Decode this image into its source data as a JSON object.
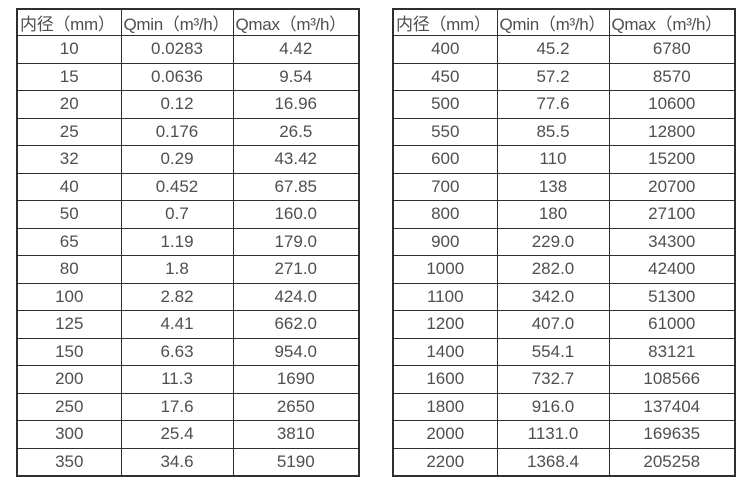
{
  "page": {
    "background": "#ffffff",
    "border_color": "#2e2e2e",
    "text_color": "#4f4f4f"
  },
  "tables": [
    {
      "name": "flow-spec-table-small-diameters",
      "headers": [
        "内径（mm）",
        "Qmin（m³/h）",
        "Qmax（m³/h）"
      ],
      "rows": [
        [
          "10",
          "0.0283",
          "4.42"
        ],
        [
          "15",
          "0.0636",
          "9.54"
        ],
        [
          "20",
          "0.12",
          "16.96"
        ],
        [
          "25",
          "0.176",
          "26.5"
        ],
        [
          "32",
          "0.29",
          "43.42"
        ],
        [
          "40",
          "0.452",
          "67.85"
        ],
        [
          "50",
          "0.7",
          "160.0"
        ],
        [
          "65",
          "1.19",
          "179.0"
        ],
        [
          "80",
          "1.8",
          "271.0"
        ],
        [
          "100",
          "2.82",
          "424.0"
        ],
        [
          "125",
          "4.41",
          "662.0"
        ],
        [
          "150",
          "6.63",
          "954.0"
        ],
        [
          "200",
          "11.3",
          "1690"
        ],
        [
          "250",
          "17.6",
          "2650"
        ],
        [
          "300",
          "25.4",
          "3810"
        ],
        [
          "350",
          "34.6",
          "5190"
        ]
      ]
    },
    {
      "name": "flow-spec-table-large-diameters",
      "headers": [
        "内径（mm）",
        "Qmin（m³/h）",
        "Qmax（m³/h）"
      ],
      "rows": [
        [
          "400",
          "45.2",
          "6780"
        ],
        [
          "450",
          "57.2",
          "8570"
        ],
        [
          "500",
          "77.6",
          "10600"
        ],
        [
          "550",
          "85.5",
          "12800"
        ],
        [
          "600",
          "110",
          "15200"
        ],
        [
          "700",
          "138",
          "20700"
        ],
        [
          "800",
          "180",
          "27100"
        ],
        [
          "900",
          "229.0",
          "34300"
        ],
        [
          "1000",
          "282.0",
          "42400"
        ],
        [
          "1100",
          "342.0",
          "51300"
        ],
        [
          "1200",
          "407.0",
          "61000"
        ],
        [
          "1400",
          "554.1",
          "83121"
        ],
        [
          "1600",
          "732.7",
          "108566"
        ],
        [
          "1800",
          "916.0",
          "137404"
        ],
        [
          "2000",
          "1131.0",
          "169635"
        ],
        [
          "2200",
          "1368.4",
          "205258"
        ]
      ]
    }
  ],
  "cell_names": [
    "diameter-cell",
    "qmin-cell",
    "qmax-cell"
  ]
}
